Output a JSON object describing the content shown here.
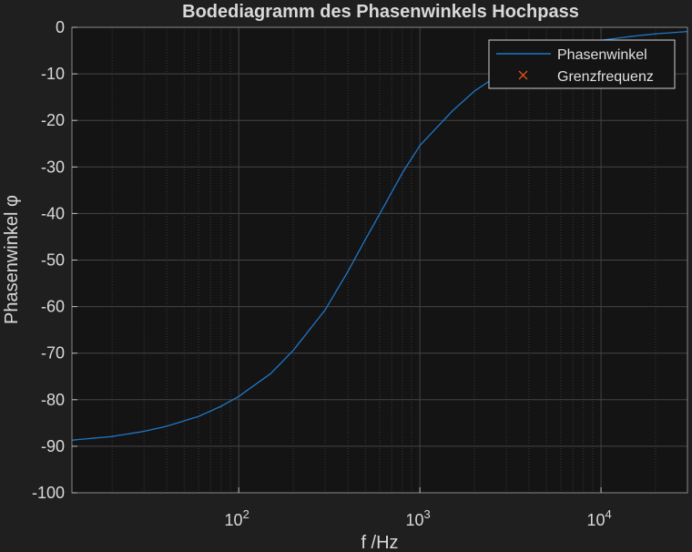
{
  "chart_data": {
    "type": "line",
    "title": "Bodediagramm des Phasenwinkels Hochpass",
    "xlabel": "f /Hz",
    "ylabel": "Phasenwinkel φ",
    "x_scale": "log",
    "xlim": [
      12,
      30000
    ],
    "ylim": [
      -100,
      0
    ],
    "x_ticks": [
      100,
      1000,
      10000
    ],
    "x_tick_labels": [
      {
        "base": "10",
        "exp": "2"
      },
      {
        "base": "10",
        "exp": "3"
      },
      {
        "base": "10",
        "exp": "4"
      }
    ],
    "y_ticks": [
      0,
      -10,
      -20,
      -30,
      -40,
      -50,
      -60,
      -70,
      -80,
      -90,
      -100
    ],
    "y_tick_labels": [
      "0",
      "-10",
      "-20",
      "-30",
      "-40",
      "-50",
      "-60",
      "-70",
      "-80",
      "-90",
      "-100"
    ],
    "grid": true,
    "minor_grid": true,
    "legend_position": "top-right",
    "series": [
      {
        "name": "Phasenwinkel",
        "color": "#1f77c8",
        "x": [
          12,
          20,
          30,
          40,
          60,
          80,
          100,
          150,
          200,
          300,
          400,
          500,
          600,
          800,
          1000,
          1500,
          2000,
          3000,
          4000,
          5000,
          7000,
          10000,
          15000,
          20000,
          30000
        ],
        "y": [
          -88.7,
          -87.9,
          -86.8,
          -85.7,
          -83.6,
          -81.4,
          -79.3,
          -74.4,
          -69.4,
          -60.7,
          -52.5,
          -45.6,
          -40.1,
          -31.3,
          -25.4,
          -18.1,
          -13.7,
          -9.1,
          -6.9,
          -5.5,
          -3.9,
          -2.8,
          -1.9,
          -1.4,
          -0.9
        ]
      },
      {
        "name": "Grenzfrequenz",
        "color": "#d95319",
        "marker": "x",
        "x": [],
        "y": []
      }
    ]
  }
}
